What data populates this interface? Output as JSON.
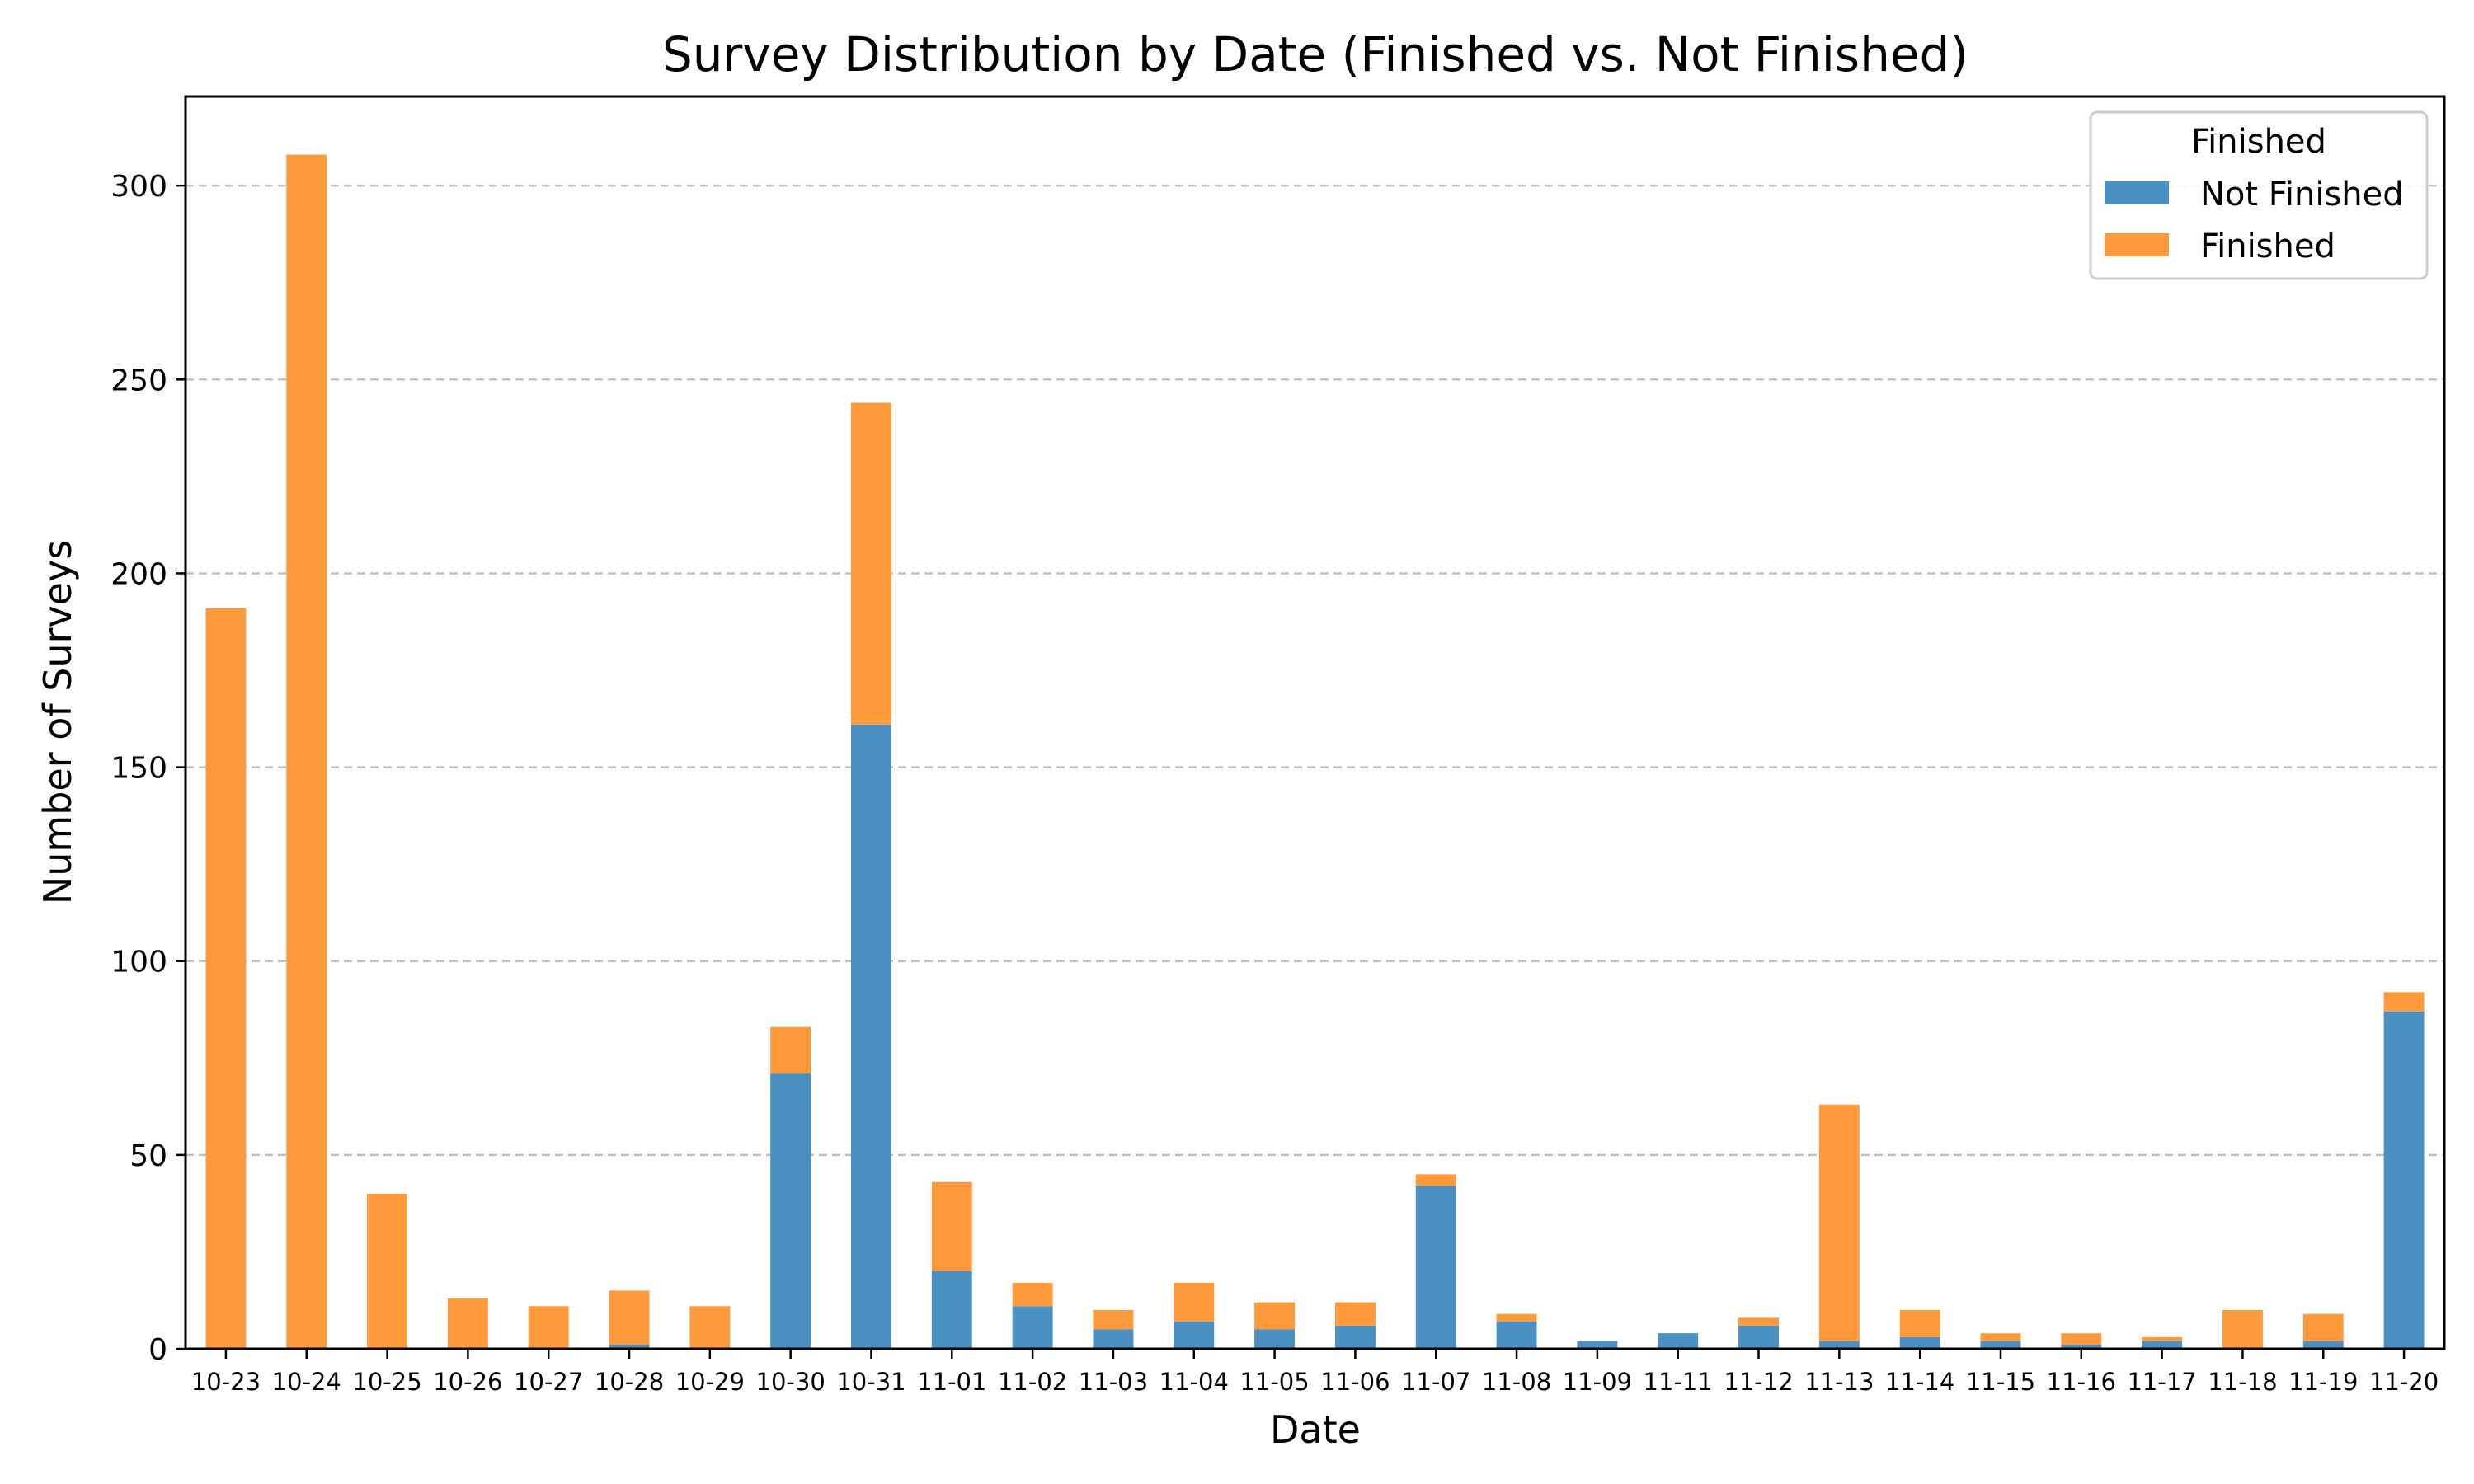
{
  "chart_data": {
    "type": "bar",
    "stacked": true,
    "title": "Survey Distribution by Date (Finished vs. Not Finished)",
    "xlabel": "Date",
    "ylabel": "Number of Surveys",
    "ylim": [
      0,
      323
    ],
    "yticks": [
      0,
      50,
      100,
      150,
      200,
      250,
      300
    ],
    "grid": "y-dashed",
    "legend": {
      "title": "Finished",
      "placement": "top-right"
    },
    "categories": [
      "10-23",
      "10-24",
      "10-25",
      "10-26",
      "10-27",
      "10-28",
      "10-29",
      "10-30",
      "10-31",
      "11-01",
      "11-02",
      "11-03",
      "11-04",
      "11-05",
      "11-06",
      "11-07",
      "11-08",
      "11-09",
      "11-11",
      "11-12",
      "11-13",
      "11-14",
      "11-15",
      "11-16",
      "11-17",
      "11-18",
      "11-19",
      "11-20"
    ],
    "series": [
      {
        "name": "Not Finished",
        "color": "#4a90c2",
        "values": [
          0,
          0,
          0,
          0,
          0,
          1,
          0,
          71,
          161,
          20,
          11,
          5,
          7,
          5,
          6,
          42,
          7,
          2,
          4,
          6,
          2,
          3,
          2,
          1,
          2,
          0,
          2,
          87
        ]
      },
      {
        "name": "Finished",
        "color": "#ff9a3c",
        "values": [
          191,
          308,
          40,
          13,
          11,
          14,
          11,
          12,
          83,
          23,
          6,
          5,
          10,
          7,
          6,
          3,
          2,
          0,
          0,
          2,
          61,
          7,
          2,
          3,
          1,
          10,
          7,
          5
        ]
      }
    ]
  }
}
